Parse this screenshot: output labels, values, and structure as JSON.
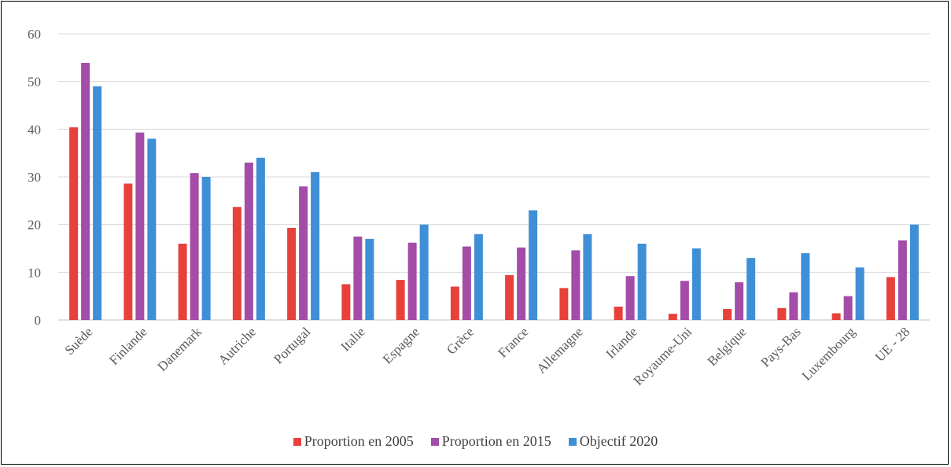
{
  "chart_data": {
    "type": "bar",
    "categories": [
      "Suède",
      "Finlande",
      "Danemark",
      "Autriche",
      "Portugal",
      "Italie",
      "Espagne",
      "Grèce",
      "France",
      "Allemagne",
      "Irlande",
      "Royaume-Uni",
      "Belgique",
      "Pays-Bas",
      "Luxembourg",
      "UE - 28"
    ],
    "series": [
      {
        "name": "Proportion en 2005",
        "color": "#E8403A",
        "values": [
          40.4,
          28.6,
          16.0,
          23.7,
          19.3,
          7.5,
          8.4,
          7.0,
          9.4,
          6.7,
          2.8,
          1.3,
          2.3,
          2.5,
          1.4,
          9.0
        ]
      },
      {
        "name": "Proportion en 2015",
        "color": "#A34CA8",
        "values": [
          53.9,
          39.3,
          30.8,
          33.0,
          28.0,
          17.5,
          16.2,
          15.4,
          15.2,
          14.6,
          9.2,
          8.2,
          7.9,
          5.8,
          5.0,
          16.7
        ]
      },
      {
        "name": "Objectif 2020",
        "color": "#3F8FD6",
        "values": [
          49,
          38,
          30,
          34,
          31,
          17,
          20,
          18,
          23,
          18,
          16,
          15,
          13,
          14,
          11,
          20
        ]
      }
    ],
    "yticks": [
      "0",
      "10",
      "20",
      "30",
      "40",
      "50",
      "60"
    ],
    "ylim": [
      0,
      60
    ],
    "grid": true,
    "legend_position": "bottom"
  }
}
